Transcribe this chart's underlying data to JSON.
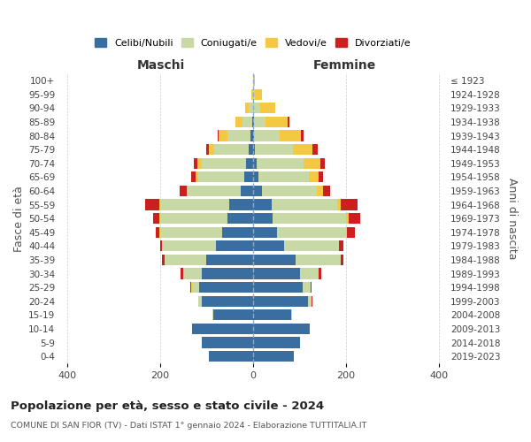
{
  "age_groups": [
    "0-4",
    "5-9",
    "10-14",
    "15-19",
    "20-24",
    "25-29",
    "30-34",
    "35-39",
    "40-44",
    "45-49",
    "50-54",
    "55-59",
    "60-64",
    "65-69",
    "70-74",
    "75-79",
    "80-84",
    "85-89",
    "90-94",
    "95-99",
    "100+"
  ],
  "birth_years": [
    "2019-2023",
    "2014-2018",
    "2009-2013",
    "2004-2008",
    "1999-2003",
    "1994-1998",
    "1989-1993",
    "1984-1988",
    "1979-1983",
    "1974-1978",
    "1969-1973",
    "1964-1968",
    "1959-1963",
    "1954-1958",
    "1949-1953",
    "1944-1948",
    "1939-1943",
    "1934-1938",
    "1929-1933",
    "1924-1928",
    "≤ 1923"
  ],
  "colors": {
    "celibi": "#3a6da0",
    "coniugati": "#c8d9a5",
    "vedovi": "#f5c842",
    "divorziati": "#cc2020"
  },
  "maschi": {
    "celibi": [
      95,
      110,
      130,
      85,
      110,
      115,
      110,
      100,
      80,
      65,
      55,
      50,
      25,
      18,
      14,
      8,
      5,
      2,
      0,
      0,
      0
    ],
    "coniugati": [
      0,
      0,
      0,
      2,
      8,
      15,
      40,
      90,
      115,
      135,
      145,
      150,
      115,
      100,
      95,
      75,
      50,
      20,
      8,
      2,
      0
    ],
    "vedovi": [
      0,
      0,
      0,
      0,
      0,
      2,
      0,
      0,
      0,
      1,
      2,
      2,
      2,
      5,
      10,
      12,
      18,
      15,
      8,
      2,
      0
    ],
    "divorziati": [
      0,
      0,
      0,
      0,
      0,
      2,
      5,
      5,
      5,
      8,
      12,
      30,
      15,
      10,
      8,
      5,
      2,
      0,
      0,
      0,
      0
    ]
  },
  "femmine": {
    "celibi": [
      88,
      102,
      122,
      82,
      118,
      108,
      102,
      92,
      67,
      52,
      42,
      40,
      20,
      12,
      8,
      5,
      2,
      2,
      0,
      0,
      0
    ],
    "coniugati": [
      0,
      0,
      0,
      2,
      8,
      16,
      40,
      97,
      118,
      148,
      158,
      142,
      118,
      108,
      102,
      82,
      56,
      26,
      16,
      5,
      0
    ],
    "vedovi": [
      0,
      0,
      0,
      0,
      0,
      0,
      0,
      0,
      1,
      2,
      6,
      8,
      13,
      22,
      36,
      42,
      46,
      48,
      32,
      14,
      5
    ],
    "divorziati": [
      0,
      0,
      0,
      0,
      2,
      2,
      5,
      6,
      9,
      18,
      26,
      36,
      15,
      10,
      10,
      10,
      6,
      2,
      0,
      0,
      0
    ]
  },
  "xlim": 420,
  "xticks": [
    -400,
    -200,
    0,
    200,
    400
  ],
  "title_main": "Popolazione per età, sesso e stato civile - 2024",
  "title_sub": "COMUNE DI SAN FIOR (TV) - Dati ISTAT 1° gennaio 2024 - Elaborazione TUTTITALIA.IT",
  "ylabel_left": "Fasce di età",
  "ylabel_right": "Anni di nascita",
  "legend_labels": [
    "Celibi/Nubili",
    "Coniugati/e",
    "Vedovi/e",
    "Divorziati/e"
  ],
  "header_maschi": "Maschi",
  "header_femmine": "Femmine",
  "bg_color": "#ffffff",
  "grid_color": "#cccccc",
  "bar_height": 0.78,
  "center_line_color": "#8aaccc",
  "figsize": [
    6.0,
    5.0
  ],
  "dpi": 100
}
